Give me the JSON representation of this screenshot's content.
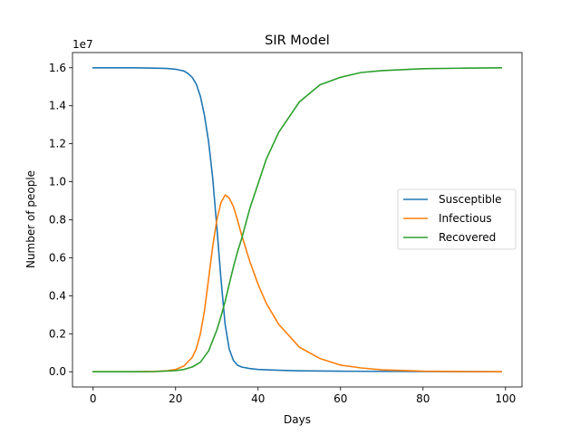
{
  "chart_data": {
    "type": "line",
    "title": "SIR Model",
    "xlabel": "Days",
    "ylabel": "Number of people",
    "y_offset_label": "1e7",
    "xlim": [
      -5,
      104
    ],
    "ylim": [
      -0.08,
      1.68
    ],
    "x_ticks": [
      0,
      20,
      40,
      60,
      80,
      100
    ],
    "y_ticks": [
      0.0,
      0.2,
      0.4,
      0.6,
      0.8,
      1.0,
      1.2,
      1.4,
      1.6
    ],
    "grid": false,
    "legend_position": "center-right",
    "series": [
      {
        "name": "Susceptible",
        "color": "#1f77b4",
        "x": [
          0,
          5,
          10,
          15,
          18,
          20,
          22,
          23,
          24,
          25,
          26,
          27,
          28,
          29,
          30,
          31,
          32,
          33,
          34,
          35,
          36,
          38,
          40,
          45,
          50,
          60,
          80,
          99
        ],
        "y": [
          1.6,
          1.6,
          1.6,
          1.598,
          1.596,
          1.592,
          1.583,
          1.57,
          1.55,
          1.515,
          1.45,
          1.35,
          1.21,
          1.02,
          0.76,
          0.49,
          0.25,
          0.12,
          0.06,
          0.035,
          0.025,
          0.017,
          0.012,
          0.008,
          0.005,
          0.003,
          0.001,
          0.0
        ]
      },
      {
        "name": "Infectious",
        "color": "#ff7f0e",
        "x": [
          0,
          10,
          15,
          18,
          20,
          22,
          24,
          25,
          26,
          27,
          28,
          29,
          30,
          31,
          32,
          33,
          34,
          35,
          36,
          38,
          40,
          42,
          45,
          50,
          55,
          60,
          65,
          70,
          80,
          90,
          99
        ],
        "y": [
          0.0,
          0.0,
          0.002,
          0.006,
          0.012,
          0.03,
          0.075,
          0.12,
          0.2,
          0.32,
          0.49,
          0.66,
          0.8,
          0.89,
          0.93,
          0.915,
          0.87,
          0.8,
          0.72,
          0.58,
          0.46,
          0.36,
          0.25,
          0.13,
          0.07,
          0.035,
          0.02,
          0.01,
          0.003,
          0.001,
          0.0
        ]
      },
      {
        "name": "Recovered",
        "color": "#2ca02c",
        "x": [
          0,
          10,
          15,
          20,
          22,
          24,
          26,
          28,
          30,
          31,
          32,
          33,
          34,
          35,
          36,
          38,
          40,
          42,
          45,
          50,
          55,
          60,
          65,
          70,
          80,
          90,
          99
        ],
        "y": [
          0.0,
          0.0,
          0.001,
          0.006,
          0.012,
          0.025,
          0.05,
          0.11,
          0.22,
          0.29,
          0.37,
          0.46,
          0.55,
          0.63,
          0.7,
          0.86,
          0.99,
          1.12,
          1.26,
          1.42,
          1.51,
          1.55,
          1.575,
          1.585,
          1.595,
          1.598,
          1.6
        ]
      }
    ]
  }
}
